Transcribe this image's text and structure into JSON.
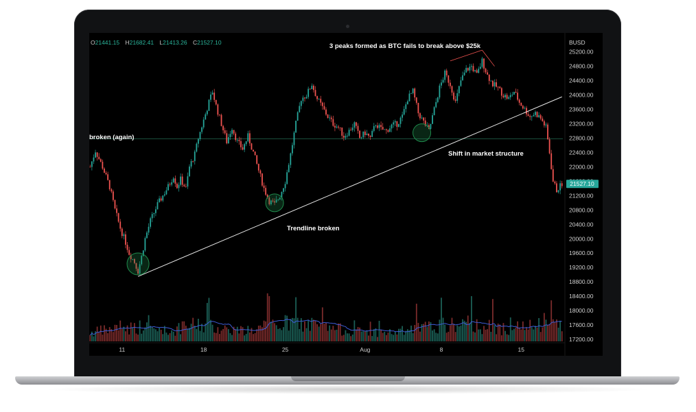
{
  "ohlc": {
    "o_label": "O",
    "o": "21441.15",
    "h_label": "H",
    "h": "21682.41",
    "l_label": "L",
    "l": "21413.26",
    "c_label": "C",
    "c": "21527.10"
  },
  "colors": {
    "up": "#26a69a",
    "down": "#ef5350",
    "trendline": "#e8e8e8",
    "support": "#1e5a45",
    "ma": "#3d5bd6",
    "price_tag": "#26a69a",
    "circle": "#1f8a4c"
  },
  "chart_data": {
    "type": "candlestick",
    "quote_currency": "BUSD",
    "y_ticks": [
      "25200.00",
      "24800.00",
      "24400.00",
      "24000.00",
      "23600.00",
      "23200.00",
      "22800.00",
      "22400.00",
      "22000.00",
      "21600.00",
      "21200.00",
      "20800.00",
      "20400.00",
      "20000.00",
      "19600.00",
      "19200.00",
      "18800.00",
      "18400.00",
      "18000.00",
      "17600.00",
      "17200.00"
    ],
    "ylim": [
      17200,
      25500
    ],
    "x_ticks": [
      "11",
      "18",
      "25",
      "Aug",
      "8",
      "15"
    ],
    "last_price": "21527.10",
    "support_level": 22780,
    "trendline": {
      "from_x": "Jul 13",
      "from_y": 18950,
      "to_x": "Aug 19",
      "to_y": 23950
    },
    "annotations": [
      {
        "text": "3 peaks formed as BTC fails to break above $25k"
      },
      {
        "text": "broken (again)"
      },
      {
        "text": "Shift in market structure"
      },
      {
        "text": "Trendline broken"
      }
    ],
    "price_path": [
      [
        0,
        22000
      ],
      [
        3,
        22450
      ],
      [
        7,
        22000
      ],
      [
        11,
        21450
      ],
      [
        14,
        20800
      ],
      [
        17,
        20300
      ],
      [
        20,
        19900
      ],
      [
        22,
        19600
      ],
      [
        25,
        19350
      ],
      [
        27,
        19100
      ],
      [
        29,
        19500
      ],
      [
        31,
        20000
      ],
      [
        34,
        20500
      ],
      [
        38,
        20950
      ],
      [
        41,
        21200
      ],
      [
        44,
        21450
      ],
      [
        47,
        21750
      ],
      [
        49,
        21450
      ],
      [
        51,
        21650
      ],
      [
        54,
        21400
      ],
      [
        56,
        22000
      ],
      [
        59,
        22350
      ],
      [
        61,
        22800
      ],
      [
        64,
        23300
      ],
      [
        67,
        23800
      ],
      [
        69,
        24100
      ],
      [
        71,
        23700
      ],
      [
        74,
        23200
      ],
      [
        77,
        22700
      ],
      [
        80,
        23100
      ],
      [
        83,
        22700
      ],
      [
        86,
        22500
      ],
      [
        89,
        22850
      ],
      [
        92,
        22400
      ],
      [
        95,
        21900
      ],
      [
        98,
        21400
      ],
      [
        101,
        21050
      ],
      [
        104,
        20950
      ],
      [
        107,
        21200
      ],
      [
        110,
        21600
      ],
      [
        113,
        22350
      ],
      [
        116,
        23200
      ],
      [
        119,
        23900
      ],
      [
        122,
        24000
      ],
      [
        125,
        24300
      ],
      [
        128,
        23900
      ],
      [
        131,
        23650
      ],
      [
        134,
        23400
      ],
      [
        137,
        23200
      ],
      [
        140,
        23100
      ],
      [
        143,
        22850
      ],
      [
        146,
        23000
      ],
      [
        149,
        23200
      ],
      [
        152,
        22800
      ],
      [
        155,
        22950
      ],
      [
        158,
        22800
      ],
      [
        161,
        23200
      ],
      [
        164,
        23050
      ],
      [
        167,
        23000
      ],
      [
        170,
        23150
      ],
      [
        173,
        23200
      ],
      [
        176,
        23400
      ],
      [
        179,
        23900
      ],
      [
        182,
        24100
      ],
      [
        185,
        23500
      ],
      [
        188,
        23250
      ],
      [
        191,
        23000
      ],
      [
        194,
        23600
      ],
      [
        197,
        24200
      ],
      [
        200,
        24600
      ],
      [
        203,
        24300
      ],
      [
        206,
        23800
      ],
      [
        209,
        24400
      ],
      [
        212,
        24700
      ],
      [
        215,
        24800
      ],
      [
        218,
        24550
      ],
      [
        221,
        24950
      ],
      [
        224,
        24550
      ],
      [
        227,
        24300
      ],
      [
        230,
        24200
      ],
      [
        233,
        24000
      ],
      [
        236,
        23900
      ],
      [
        239,
        24100
      ],
      [
        242,
        23800
      ],
      [
        245,
        23600
      ],
      [
        248,
        23400
      ],
      [
        251,
        23500
      ],
      [
        254,
        23350
      ],
      [
        257,
        23100
      ],
      [
        259,
        22400
      ],
      [
        261,
        21600
      ],
      [
        263,
        21350
      ],
      [
        266,
        21527
      ]
    ],
    "volume_path": [
      [
        0,
        0.6
      ],
      [
        14,
        0.9
      ],
      [
        28,
        1.0
      ],
      [
        45,
        0.7
      ],
      [
        60,
        1.2
      ],
      [
        75,
        0.9
      ],
      [
        90,
        0.7
      ],
      [
        100,
        1.1
      ],
      [
        115,
        1.3
      ],
      [
        130,
        1.0
      ],
      [
        150,
        0.7
      ],
      [
        170,
        0.6
      ],
      [
        185,
        0.9
      ],
      [
        200,
        1.1
      ],
      [
        215,
        1.2
      ],
      [
        230,
        0.9
      ],
      [
        250,
        1.0
      ],
      [
        266,
        1.4
      ]
    ],
    "xtick_index": {
      "11": 18,
      "18": 64,
      "25": 110,
      "Aug": 155,
      "8": 198,
      "15": 243
    }
  }
}
